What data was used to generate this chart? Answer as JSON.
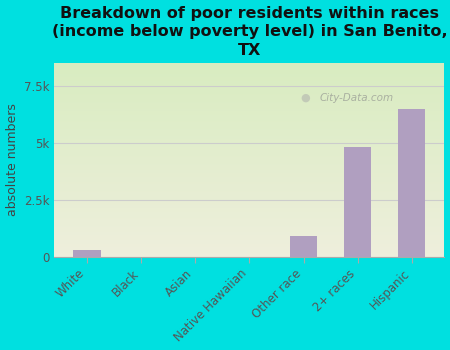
{
  "title": "Breakdown of poor residents within races\n(income below poverty level) in San Benito,\nTX",
  "categories": [
    "White",
    "Black",
    "Asian",
    "Native Hawaiian",
    "Other race",
    "2+ races",
    "Hispanic"
  ],
  "values": [
    300,
    0,
    0,
    0,
    900,
    4800,
    6500
  ],
  "bar_color": "#b09fc0",
  "ylabel": "absolute numbers",
  "yticks": [
    0,
    2500,
    5000,
    7500
  ],
  "ytick_labels": [
    "0",
    "2.5k",
    "5k",
    "7.5k"
  ],
  "ylim": [
    0,
    8500
  ],
  "background_outer": "#00e0e0",
  "background_plot_top": "#d8ecc0",
  "background_plot_bottom": "#eeeedc",
  "grid_color": "#cccccc",
  "watermark": "City-Data.com",
  "title_fontsize": 11.5,
  "axis_label_fontsize": 9,
  "tick_fontsize": 8.5
}
